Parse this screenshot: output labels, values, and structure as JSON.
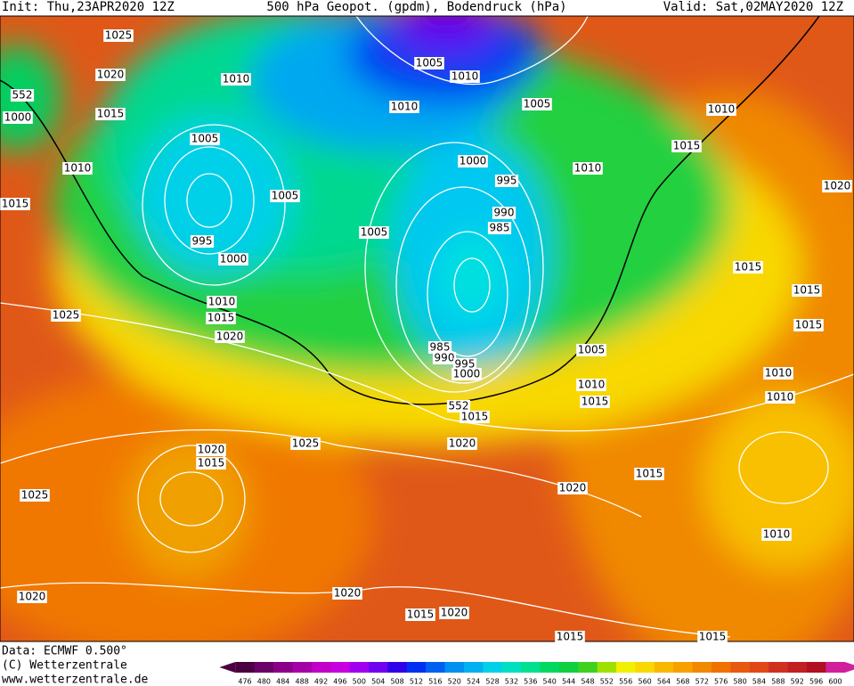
{
  "header": {
    "init": "Init: Thu,23APR2020 12Z",
    "title": "500 hPa Geopot. (gpdm), Bodendruck (hPa)",
    "valid": "Valid: Sat,02MAY2020 12Z"
  },
  "footer": {
    "data": "Data: ECMWF  0.500°",
    "copyright": "(C) Wetterzentrale",
    "url": "www.wetterzentrale.de"
  },
  "isobar_labels": [
    "1025",
    "1020",
    "1010",
    "1015",
    "552",
    "1000",
    "1005",
    "1010",
    "1015",
    "995",
    "1000",
    "1005",
    "1005",
    "1005",
    "1010",
    "1010",
    "1005",
    "1000",
    "995",
    "990",
    "985",
    "1010",
    "1010",
    "1015",
    "1020",
    "1015",
    "1015",
    "1015",
    "1010",
    "1015",
    "1020",
    "1025",
    "985",
    "990",
    "995",
    "1000",
    "1005",
    "1010",
    "1015",
    "1010",
    "1010",
    "552",
    "1015",
    "1020",
    "1025",
    "1020",
    "1015",
    "1025",
    "1015",
    "1020",
    "1010",
    "1020",
    "1020",
    "1015",
    "1020",
    "1015",
    "1015"
  ],
  "colorbar": {
    "values": [
      476,
      480,
      484,
      488,
      492,
      496,
      500,
      504,
      508,
      512,
      516,
      520,
      524,
      528,
      532,
      536,
      540,
      544,
      548,
      552,
      556,
      560,
      564,
      568,
      572,
      576,
      580,
      584,
      588,
      592,
      596,
      600
    ],
    "colors": [
      "#4a0040",
      "#6a0068",
      "#8a0088",
      "#a400a8",
      "#c000c8",
      "#c800e0",
      "#a000f0",
      "#7000f0",
      "#3000e8",
      "#0030f0",
      "#0060f0",
      "#0090f0",
      "#00b0f0",
      "#00d0e8",
      "#00e0c0",
      "#00e090",
      "#00d860",
      "#10d040",
      "#40d020",
      "#a0e000",
      "#f0f000",
      "#f8d800",
      "#f8b800",
      "#f8a000",
      "#f08800",
      "#f07000",
      "#e85810",
      "#e04818",
      "#d03020",
      "#c02020",
      "#b01020",
      "#d0209c"
    ]
  }
}
